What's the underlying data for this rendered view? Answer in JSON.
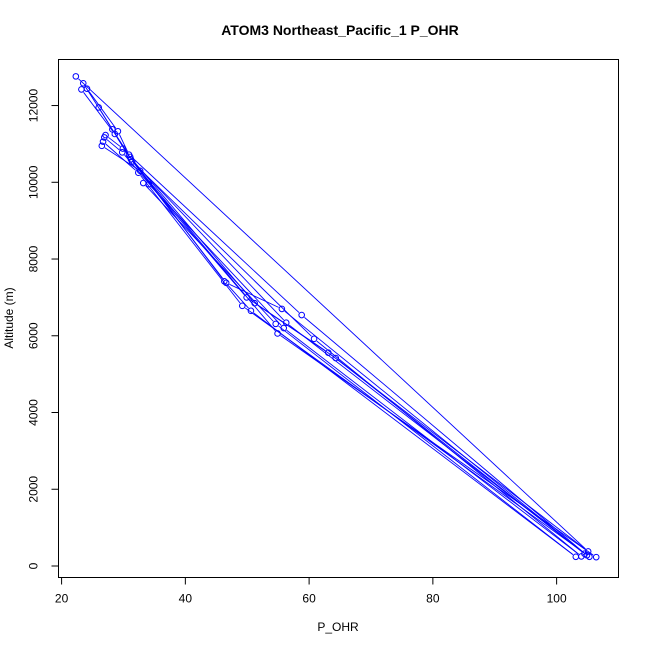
{
  "chart_data": {
    "type": "scatter",
    "title": "ATOM3 Northeast_Pacific_1 P_OHR",
    "xlabel": "P_OHR",
    "ylabel": "Altitude (m)",
    "xlim": [
      19.5,
      110
    ],
    "ylim": [
      -300,
      13200
    ],
    "xticks": [
      20,
      40,
      60,
      80,
      100
    ],
    "yticks": [
      0,
      2000,
      4000,
      6000,
      8000,
      10000,
      12000
    ],
    "grid": false,
    "legend": "none",
    "colors": {
      "series": "#0000ff",
      "axis": "#000000",
      "background": "#ffffff"
    },
    "series": [
      {
        "points": [
          {
            "x": 22.3,
            "y": 12760
          },
          {
            "x": 23.2,
            "y": 12420
          },
          {
            "x": 23.5,
            "y": 12580
          },
          {
            "x": 24.1,
            "y": 12440
          },
          {
            "x": 26.0,
            "y": 11950
          },
          {
            "x": 28.2,
            "y": 11380
          },
          {
            "x": 28.6,
            "y": 11260
          },
          {
            "x": 29.1,
            "y": 11330
          },
          {
            "x": 26.5,
            "y": 10950
          },
          {
            "x": 26.7,
            "y": 11060
          },
          {
            "x": 26.9,
            "y": 11170
          },
          {
            "x": 27.1,
            "y": 11230
          },
          {
            "x": 29.8,
            "y": 10780
          },
          {
            "x": 29.9,
            "y": 10880
          },
          {
            "x": 30.9,
            "y": 10720
          },
          {
            "x": 31.1,
            "y": 10660
          },
          {
            "x": 31.2,
            "y": 10600
          },
          {
            "x": 31.4,
            "y": 10540
          },
          {
            "x": 32.4,
            "y": 10250
          },
          {
            "x": 32.7,
            "y": 10300
          },
          {
            "x": 33.2,
            "y": 9980
          },
          {
            "x": 34.1,
            "y": 9950
          },
          {
            "x": 46.3,
            "y": 7420
          },
          {
            "x": 46.6,
            "y": 7380
          },
          {
            "x": 49.2,
            "y": 6780
          },
          {
            "x": 49.9,
            "y": 7000
          },
          {
            "x": 50.6,
            "y": 6650
          },
          {
            "x": 51.2,
            "y": 6850
          },
          {
            "x": 54.6,
            "y": 6310
          },
          {
            "x": 54.9,
            "y": 6060
          },
          {
            "x": 55.6,
            "y": 6700
          },
          {
            "x": 55.9,
            "y": 6200
          },
          {
            "x": 56.3,
            "y": 6340
          },
          {
            "x": 58.8,
            "y": 6540
          },
          {
            "x": 60.8,
            "y": 5920
          },
          {
            "x": 63.1,
            "y": 5560
          },
          {
            "x": 64.3,
            "y": 5420
          },
          {
            "x": 103.1,
            "y": 240
          },
          {
            "x": 104.0,
            "y": 250
          },
          {
            "x": 104.5,
            "y": 320
          },
          {
            "x": 104.9,
            "y": 280
          },
          {
            "x": 105.3,
            "y": 240
          },
          {
            "x": 105.1,
            "y": 380
          },
          {
            "x": 106.4,
            "y": 230
          }
        ],
        "profiles": [
          [
            {
              "x": 22.3,
              "y": 12760
            },
            {
              "x": 105.1,
              "y": 380
            }
          ],
          [
            {
              "x": 23.2,
              "y": 12420
            },
            {
              "x": 28.6,
              "y": 11260
            },
            {
              "x": 31.2,
              "y": 10600
            },
            {
              "x": 46.6,
              "y": 7380
            },
            {
              "x": 55.6,
              "y": 6700
            },
            {
              "x": 104.5,
              "y": 320
            }
          ],
          [
            {
              "x": 23.5,
              "y": 12580
            },
            {
              "x": 28.2,
              "y": 11380
            },
            {
              "x": 31.1,
              "y": 10660
            },
            {
              "x": 46.3,
              "y": 7420
            },
            {
              "x": 50.6,
              "y": 6650
            },
            {
              "x": 103.1,
              "y": 240
            }
          ],
          [
            {
              "x": 24.1,
              "y": 12440
            },
            {
              "x": 29.1,
              "y": 11330
            },
            {
              "x": 30.9,
              "y": 10720
            },
            {
              "x": 58.8,
              "y": 6540
            },
            {
              "x": 104.9,
              "y": 280
            }
          ],
          [
            {
              "x": 26.0,
              "y": 11950
            },
            {
              "x": 31.4,
              "y": 10540
            },
            {
              "x": 60.8,
              "y": 5920
            },
            {
              "x": 104.0,
              "y": 250
            }
          ],
          [
            {
              "x": 26.5,
              "y": 10950
            },
            {
              "x": 32.7,
              "y": 10300
            },
            {
              "x": 54.9,
              "y": 6060
            },
            {
              "x": 106.4,
              "y": 230
            }
          ],
          [
            {
              "x": 26.7,
              "y": 11060
            },
            {
              "x": 32.4,
              "y": 10250
            },
            {
              "x": 49.2,
              "y": 6780
            },
            {
              "x": 105.3,
              "y": 240
            }
          ],
          [
            {
              "x": 26.9,
              "y": 11170
            },
            {
              "x": 29.8,
              "y": 10780
            },
            {
              "x": 49.9,
              "y": 7000
            },
            {
              "x": 63.1,
              "y": 5560
            },
            {
              "x": 105.1,
              "y": 380
            }
          ],
          [
            {
              "x": 27.1,
              "y": 11230
            },
            {
              "x": 29.9,
              "y": 10880
            },
            {
              "x": 51.2,
              "y": 6850
            },
            {
              "x": 64.3,
              "y": 5420
            },
            {
              "x": 104.5,
              "y": 320
            }
          ],
          [
            {
              "x": 33.2,
              "y": 9980
            },
            {
              "x": 54.6,
              "y": 6310
            },
            {
              "x": 103.1,
              "y": 240
            }
          ],
          [
            {
              "x": 34.1,
              "y": 9950
            },
            {
              "x": 55.9,
              "y": 6200
            },
            {
              "x": 104.0,
              "y": 250
            }
          ],
          [
            {
              "x": 31.2,
              "y": 10600
            },
            {
              "x": 56.3,
              "y": 6340
            },
            {
              "x": 104.9,
              "y": 280
            }
          ]
        ]
      }
    ]
  }
}
